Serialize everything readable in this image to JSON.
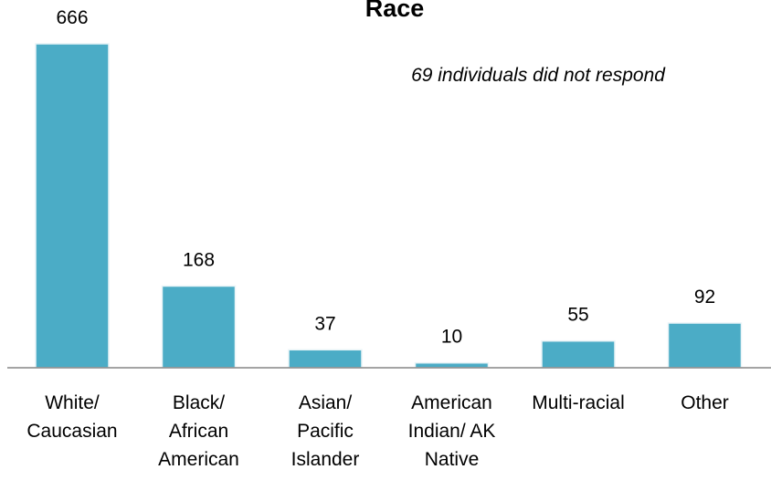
{
  "chart_data": {
    "type": "bar",
    "title": "Race",
    "annotation": "69 individuals did not respond",
    "categories": [
      [
        "White/",
        "Caucasian"
      ],
      [
        "Black/",
        "African",
        "American"
      ],
      [
        "Asian/",
        "Pacific",
        "Islander"
      ],
      [
        "American",
        "Indian/ AK",
        "Native"
      ],
      [
        "Multi-racial"
      ],
      [
        "Other"
      ]
    ],
    "values": [
      666,
      168,
      37,
      10,
      55,
      92
    ],
    "ylim": [
      0,
      700
    ],
    "grid": false,
    "legend": "none",
    "bar_color": "#4bacc6",
    "axis_color": "#868686"
  }
}
